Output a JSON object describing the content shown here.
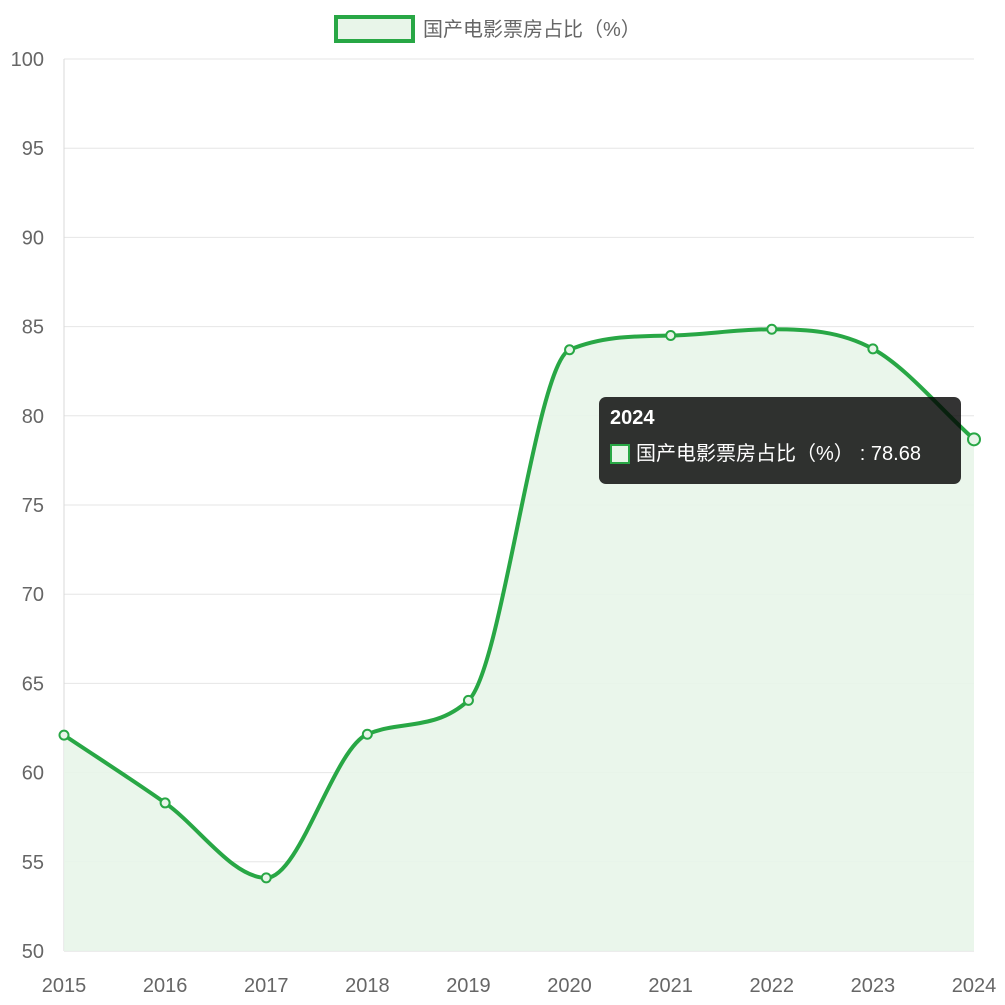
{
  "chart_data": {
    "type": "area",
    "x": [
      "2015",
      "2016",
      "2017",
      "2018",
      "2019",
      "2020",
      "2021",
      "2022",
      "2023",
      "2024"
    ],
    "series": [
      {
        "name": "国产电影票房占比（%）",
        "values": [
          62.1,
          58.3,
          54.1,
          62.15,
          64.05,
          83.7,
          84.5,
          84.85,
          83.75,
          78.68
        ]
      }
    ],
    "ylim": [
      50,
      100
    ],
    "yticks": [
      "100",
      "95",
      "90",
      "85",
      "80",
      "75",
      "70",
      "65",
      "60",
      "55",
      "50"
    ],
    "grid": true,
    "legend_position": "top-center",
    "line_color": "#28a745",
    "fill_color": "#e8f5e9",
    "tooltip": {
      "title": "2024",
      "label": "国产电影票房占比（%）",
      "value": ": 78.68"
    }
  }
}
